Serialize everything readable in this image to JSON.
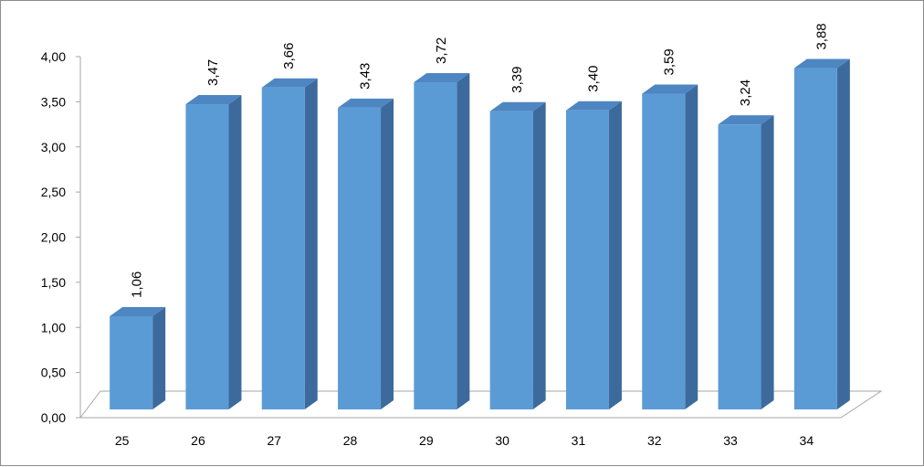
{
  "chart_data": {
    "type": "bar",
    "categories": [
      "25",
      "26",
      "27",
      "28",
      "29",
      "30",
      "31",
      "32",
      "33",
      "34"
    ],
    "values": [
      1.06,
      3.47,
      3.66,
      3.43,
      3.72,
      3.39,
      3.4,
      3.59,
      3.24,
      3.88
    ],
    "value_labels": [
      "1,06",
      "3,47",
      "3,66",
      "3,43",
      "3,72",
      "3,39",
      "3,40",
      "3,59",
      "3,24",
      "3,88"
    ],
    "y_ticks": [
      "0,00",
      "0,50",
      "1,00",
      "1,50",
      "2,00",
      "2,50",
      "3,00",
      "3,50",
      "4,00"
    ],
    "ylim": [
      0,
      4
    ],
    "title": "",
    "xlabel": "",
    "ylabel": "",
    "grid": false,
    "legend": "none",
    "style": "3d-column",
    "colors": {
      "bar_front": "#5b9bd5",
      "bar_top": "#4e86c2",
      "bar_side": "#3c6a9c",
      "axis": "#a6a6a6"
    }
  }
}
